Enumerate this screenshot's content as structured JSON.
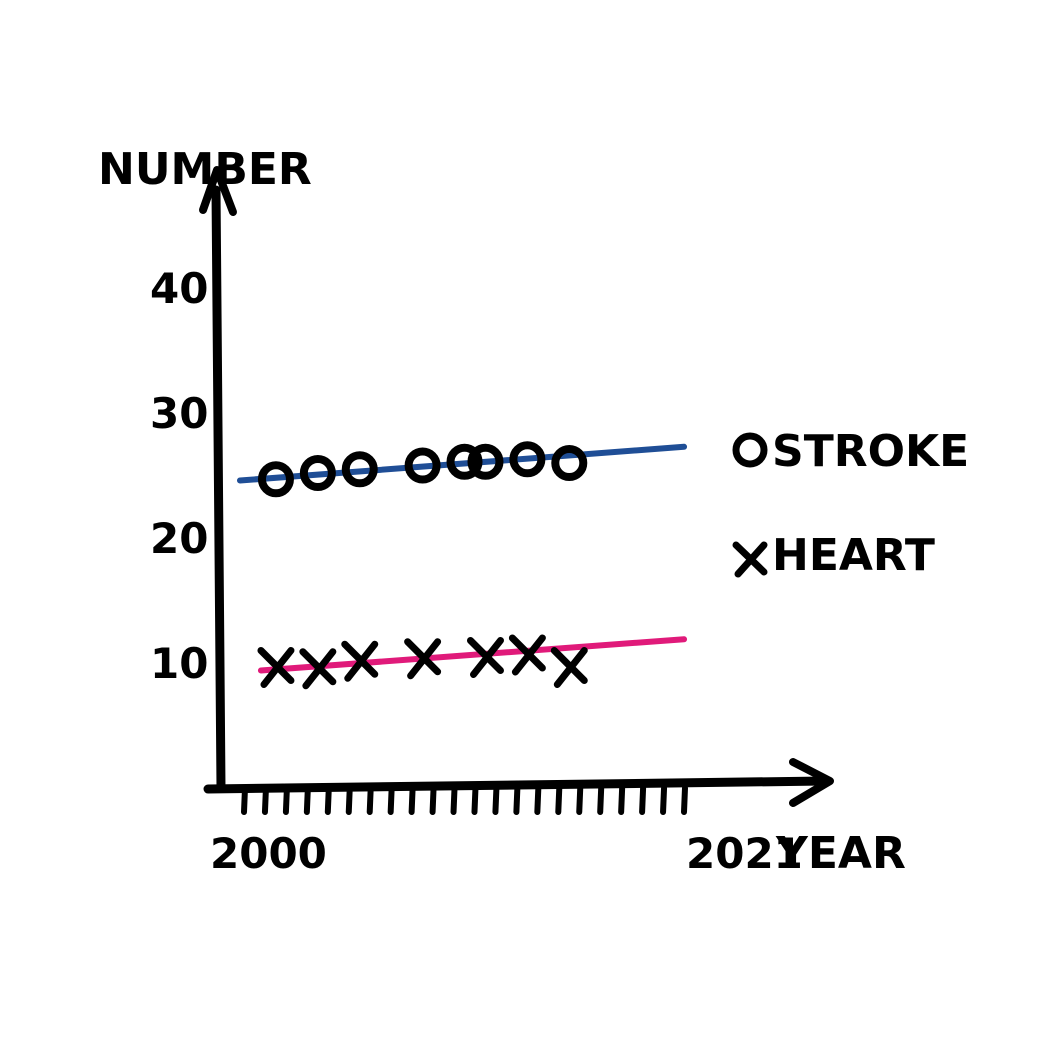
{
  "chart_data": {
    "type": "scatter",
    "xlabel": "YEAR",
    "ylabel": "NUMBER",
    "xlim": [
      2000,
      2021
    ],
    "ylim": [
      0,
      45
    ],
    "x_tick_labels": [
      "2000",
      "2021"
    ],
    "y_ticks": [
      10,
      20,
      30,
      40
    ],
    "y_tick_labels": [
      "10",
      "20",
      "30",
      "40"
    ],
    "grid": false,
    "legend_position": "right",
    "series": [
      {
        "name": "STROKE",
        "marker": "o",
        "color": "#1f4e96",
        "x": [
          2001,
          2003,
          2005,
          2008,
          2010,
          2011,
          2013,
          2015
        ],
        "y": [
          24.7,
          25.2,
          25.5,
          25.8,
          26.1,
          26.1,
          26.3,
          26.0
        ],
        "trend": {
          "x": [
            2000,
            2020
          ],
          "y": [
            24.6,
            27.3
          ]
        }
      },
      {
        "name": "HEART",
        "marker": "x",
        "color": "#e01a7a",
        "x": [
          2001,
          2003,
          2005,
          2008,
          2011,
          2013,
          2015
        ],
        "y": [
          9.8,
          9.7,
          10.3,
          10.5,
          10.6,
          10.8,
          9.8
        ],
        "trend": {
          "x": [
            2001,
            2020
          ],
          "y": [
            9.4,
            11.9
          ]
        }
      }
    ]
  }
}
